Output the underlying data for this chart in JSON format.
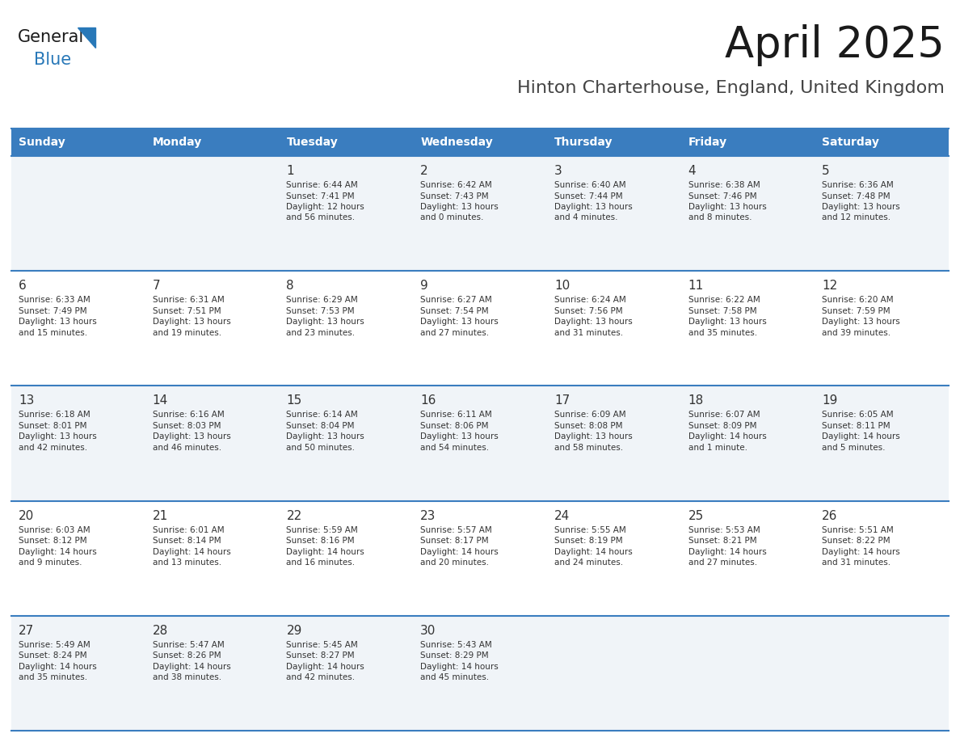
{
  "title": "April 2025",
  "subtitle": "Hinton Charterhouse, England, United Kingdom",
  "header_bg_color": "#3A7DBF",
  "header_text_color": "#FFFFFF",
  "day_names": [
    "Sunday",
    "Monday",
    "Tuesday",
    "Wednesday",
    "Thursday",
    "Friday",
    "Saturday"
  ],
  "row_bg_light": "#F0F4F8",
  "row_bg_white": "#FFFFFF",
  "cell_border_color": "#3A7DBF",
  "number_color": "#333333",
  "text_color": "#333333",
  "calendar": [
    [
      {
        "day": null,
        "sunrise": null,
        "sunset": null,
        "daylight": null
      },
      {
        "day": null,
        "sunrise": null,
        "sunset": null,
        "daylight": null
      },
      {
        "day": 1,
        "sunrise": "6:44 AM",
        "sunset": "7:41 PM",
        "daylight": "12 hours and 56 minutes."
      },
      {
        "day": 2,
        "sunrise": "6:42 AM",
        "sunset": "7:43 PM",
        "daylight": "13 hours and 0 minutes."
      },
      {
        "day": 3,
        "sunrise": "6:40 AM",
        "sunset": "7:44 PM",
        "daylight": "13 hours and 4 minutes."
      },
      {
        "day": 4,
        "sunrise": "6:38 AM",
        "sunset": "7:46 PM",
        "daylight": "13 hours and 8 minutes."
      },
      {
        "day": 5,
        "sunrise": "6:36 AM",
        "sunset": "7:48 PM",
        "daylight": "13 hours and 12 minutes."
      }
    ],
    [
      {
        "day": 6,
        "sunrise": "6:33 AM",
        "sunset": "7:49 PM",
        "daylight": "13 hours and 15 minutes."
      },
      {
        "day": 7,
        "sunrise": "6:31 AM",
        "sunset": "7:51 PM",
        "daylight": "13 hours and 19 minutes."
      },
      {
        "day": 8,
        "sunrise": "6:29 AM",
        "sunset": "7:53 PM",
        "daylight": "13 hours and 23 minutes."
      },
      {
        "day": 9,
        "sunrise": "6:27 AM",
        "sunset": "7:54 PM",
        "daylight": "13 hours and 27 minutes."
      },
      {
        "day": 10,
        "sunrise": "6:24 AM",
        "sunset": "7:56 PM",
        "daylight": "13 hours and 31 minutes."
      },
      {
        "day": 11,
        "sunrise": "6:22 AM",
        "sunset": "7:58 PM",
        "daylight": "13 hours and 35 minutes."
      },
      {
        "day": 12,
        "sunrise": "6:20 AM",
        "sunset": "7:59 PM",
        "daylight": "13 hours and 39 minutes."
      }
    ],
    [
      {
        "day": 13,
        "sunrise": "6:18 AM",
        "sunset": "8:01 PM",
        "daylight": "13 hours and 42 minutes."
      },
      {
        "day": 14,
        "sunrise": "6:16 AM",
        "sunset": "8:03 PM",
        "daylight": "13 hours and 46 minutes."
      },
      {
        "day": 15,
        "sunrise": "6:14 AM",
        "sunset": "8:04 PM",
        "daylight": "13 hours and 50 minutes."
      },
      {
        "day": 16,
        "sunrise": "6:11 AM",
        "sunset": "8:06 PM",
        "daylight": "13 hours and 54 minutes."
      },
      {
        "day": 17,
        "sunrise": "6:09 AM",
        "sunset": "8:08 PM",
        "daylight": "13 hours and 58 minutes."
      },
      {
        "day": 18,
        "sunrise": "6:07 AM",
        "sunset": "8:09 PM",
        "daylight": "14 hours and 1 minute."
      },
      {
        "day": 19,
        "sunrise": "6:05 AM",
        "sunset": "8:11 PM",
        "daylight": "14 hours and 5 minutes."
      }
    ],
    [
      {
        "day": 20,
        "sunrise": "6:03 AM",
        "sunset": "8:12 PM",
        "daylight": "14 hours and 9 minutes."
      },
      {
        "day": 21,
        "sunrise": "6:01 AM",
        "sunset": "8:14 PM",
        "daylight": "14 hours and 13 minutes."
      },
      {
        "day": 22,
        "sunrise": "5:59 AM",
        "sunset": "8:16 PM",
        "daylight": "14 hours and 16 minutes."
      },
      {
        "day": 23,
        "sunrise": "5:57 AM",
        "sunset": "8:17 PM",
        "daylight": "14 hours and 20 minutes."
      },
      {
        "day": 24,
        "sunrise": "5:55 AM",
        "sunset": "8:19 PM",
        "daylight": "14 hours and 24 minutes."
      },
      {
        "day": 25,
        "sunrise": "5:53 AM",
        "sunset": "8:21 PM",
        "daylight": "14 hours and 27 minutes."
      },
      {
        "day": 26,
        "sunrise": "5:51 AM",
        "sunset": "8:22 PM",
        "daylight": "14 hours and 31 minutes."
      }
    ],
    [
      {
        "day": 27,
        "sunrise": "5:49 AM",
        "sunset": "8:24 PM",
        "daylight": "14 hours and 35 minutes."
      },
      {
        "day": 28,
        "sunrise": "5:47 AM",
        "sunset": "8:26 PM",
        "daylight": "14 hours and 38 minutes."
      },
      {
        "day": 29,
        "sunrise": "5:45 AM",
        "sunset": "8:27 PM",
        "daylight": "14 hours and 42 minutes."
      },
      {
        "day": 30,
        "sunrise": "5:43 AM",
        "sunset": "8:29 PM",
        "daylight": "14 hours and 45 minutes."
      },
      {
        "day": null,
        "sunrise": null,
        "sunset": null,
        "daylight": null
      },
      {
        "day": null,
        "sunrise": null,
        "sunset": null,
        "daylight": null
      },
      {
        "day": null,
        "sunrise": null,
        "sunset": null,
        "daylight": null
      }
    ]
  ],
  "logo_general_color": "#1a1a1a",
  "logo_blue_color": "#2878B8"
}
